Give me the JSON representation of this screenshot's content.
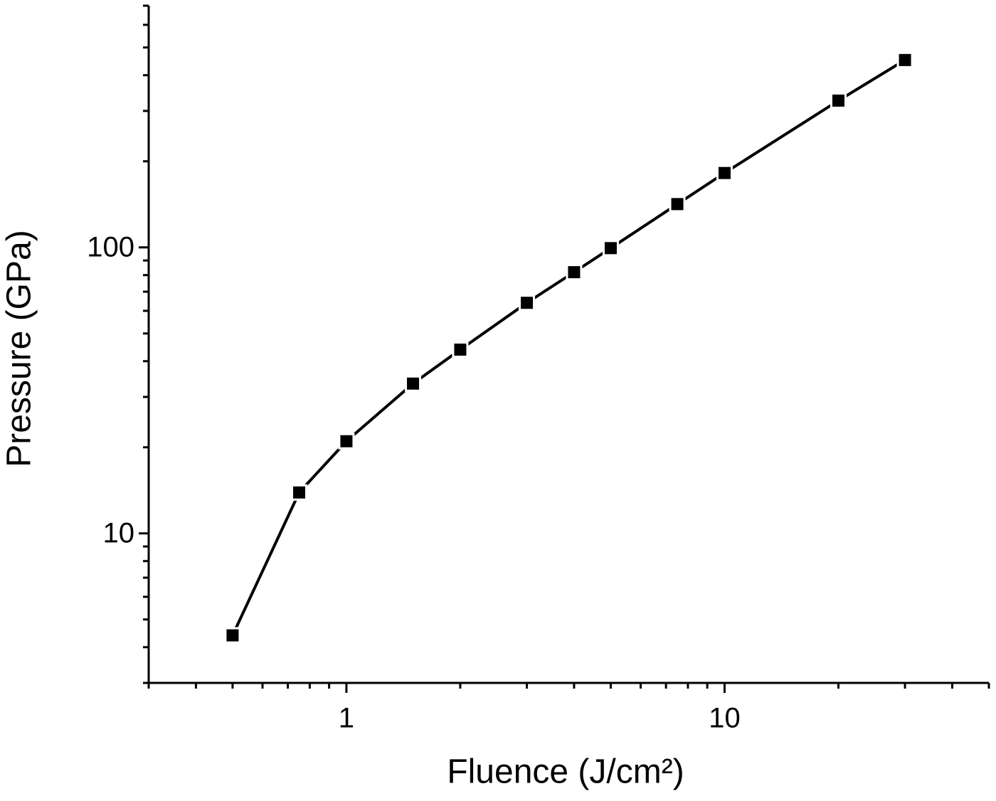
{
  "chart_data": {
    "type": "line",
    "xlabel": "Fluence (J/cm²)",
    "ylabel": "Pressure (GPa)",
    "x": [
      0.5,
      0.75,
      1,
      1.5,
      2,
      3,
      4,
      5,
      7.5,
      10,
      20,
      30
    ],
    "values": [
      4.4,
      13.9,
      21,
      33.4,
      43.9,
      64,
      81.9,
      99.4,
      141.7,
      182,
      326,
      452
    ],
    "color": "#000000",
    "xscale": "log",
    "yscale": "log",
    "xlim": [
      0.3,
      50
    ],
    "ylim": [
      3,
      700
    ],
    "xticks": [
      1,
      10
    ],
    "yticks": [
      10,
      100
    ],
    "xminor_ticks": [
      0.3,
      0.4,
      0.5,
      0.6,
      0.7,
      0.8,
      0.9,
      2,
      3,
      4,
      5,
      6,
      7,
      8,
      9,
      20,
      30,
      40,
      50
    ],
    "yminor_ticks": [
      3,
      4,
      5,
      6,
      7,
      8,
      9,
      20,
      30,
      40,
      50,
      60,
      70,
      80,
      90,
      200,
      300,
      400,
      500,
      600,
      700
    ]
  }
}
